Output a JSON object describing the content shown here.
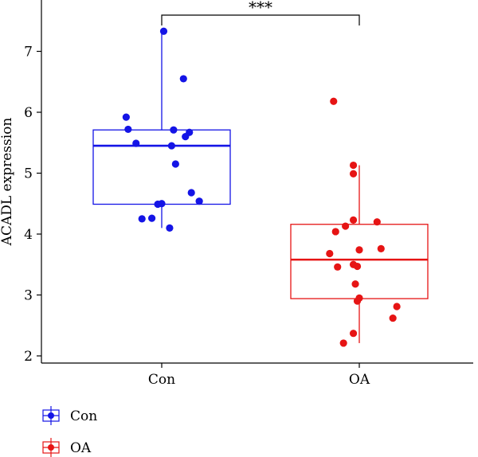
{
  "chart_data": {
    "type": "box",
    "title": "",
    "xlabel": "",
    "ylabel": "ACADL expression",
    "ylim": [
      1.95,
      7.7
    ],
    "yticks": [
      2,
      3,
      4,
      5,
      6,
      7
    ],
    "categories": [
      "Con",
      "OA"
    ],
    "groups": [
      {
        "name": "Con",
        "color": "#1414e6",
        "box": {
          "q1": 4.49,
          "median": 5.45,
          "q3": 5.71,
          "whisker_low": 4.1,
          "whisker_high": 7.33
        },
        "points": [
          {
            "jitter": 0.01,
            "y": 7.33
          },
          {
            "jitter": 0.11,
            "y": 6.55
          },
          {
            "jitter": -0.18,
            "y": 5.92
          },
          {
            "jitter": -0.17,
            "y": 5.72
          },
          {
            "jitter": 0.06,
            "y": 5.71
          },
          {
            "jitter": 0.14,
            "y": 5.67
          },
          {
            "jitter": 0.12,
            "y": 5.6
          },
          {
            "jitter": -0.13,
            "y": 5.49
          },
          {
            "jitter": 0.05,
            "y": 5.45
          },
          {
            "jitter": 0.07,
            "y": 5.15
          },
          {
            "jitter": 0.15,
            "y": 4.68
          },
          {
            "jitter": 0.19,
            "y": 4.54
          },
          {
            "jitter": 0.0,
            "y": 4.5
          },
          {
            "jitter": -0.02,
            "y": 4.49
          },
          {
            "jitter": -0.1,
            "y": 4.25
          },
          {
            "jitter": -0.05,
            "y": 4.26
          },
          {
            "jitter": 0.04,
            "y": 4.1
          }
        ]
      },
      {
        "name": "OA",
        "color": "#e61414",
        "box": {
          "q1": 2.94,
          "median": 3.58,
          "q3": 4.16,
          "whisker_low": 2.21,
          "whisker_high": 5.13
        },
        "points": [
          {
            "jitter": -0.13,
            "y": 6.18
          },
          {
            "jitter": -0.03,
            "y": 5.13
          },
          {
            "jitter": -0.03,
            "y": 4.99
          },
          {
            "jitter": -0.03,
            "y": 4.23
          },
          {
            "jitter": 0.09,
            "y": 4.2
          },
          {
            "jitter": -0.07,
            "y": 4.13
          },
          {
            "jitter": -0.12,
            "y": 4.04
          },
          {
            "jitter": 0.11,
            "y": 3.76
          },
          {
            "jitter": 0.0,
            "y": 3.74
          },
          {
            "jitter": -0.15,
            "y": 3.68
          },
          {
            "jitter": -0.03,
            "y": 3.5
          },
          {
            "jitter": -0.01,
            "y": 3.47
          },
          {
            "jitter": -0.11,
            "y": 3.46
          },
          {
            "jitter": -0.02,
            "y": 3.18
          },
          {
            "jitter": 0.0,
            "y": 2.95
          },
          {
            "jitter": -0.01,
            "y": 2.9
          },
          {
            "jitter": 0.19,
            "y": 2.81
          },
          {
            "jitter": 0.17,
            "y": 2.62
          },
          {
            "jitter": -0.03,
            "y": 2.37
          },
          {
            "jitter": -0.08,
            "y": 2.21
          }
        ]
      }
    ],
    "significance": {
      "label": "***",
      "between": [
        "Con",
        "OA"
      ]
    },
    "legend": {
      "position": "bottom-left",
      "entries": [
        "Con",
        "OA"
      ]
    }
  }
}
